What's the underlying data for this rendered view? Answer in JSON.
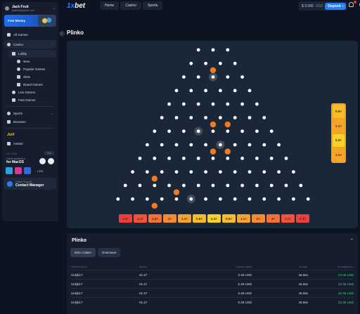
{
  "header": {
    "logo_prefix": "1x",
    "logo_suffix": "bet",
    "nav": [
      "Home",
      "Casino",
      "Sports"
    ],
    "balance": "$ 3.000",
    "currency": "USD",
    "deposit_label": "Deposit"
  },
  "sidebar": {
    "profile_name": "Jack Fruit",
    "profile_email": "jackfruit@gmail.com",
    "promo_label": "Free Money",
    "items": {
      "all_games": "All Games",
      "casino": "Casino",
      "lobby": "Lobby",
      "new": "New",
      "popular": "Popular Games",
      "slots": "Slots",
      "board": "Board Games",
      "live": "Live Games",
      "fast": "Fast Games",
      "sports": "Sports",
      "bonuses": "Bonuses",
      "jetx": "JetX",
      "aviator": "Aviator"
    },
    "vip_label": "Vip Club",
    "vip_button": "Join",
    "install_line1": "Install application",
    "install_line2": "for MacOS",
    "lang": "EN",
    "support_line1": "Online Support",
    "support_line2": "Contact Manager"
  },
  "page_title": "Plinko",
  "game": {
    "multipliers": [
      "2.3×",
      "1.1×",
      "4.4×",
      "2×",
      "1.1×",
      "0.6×",
      "0.3×",
      "0.6×",
      "1.1×",
      "2×",
      "4×",
      "1.1×",
      "2.3×"
    ],
    "multiplier_colors": [
      "#f23b3b",
      "#f4513a",
      "#f56f37",
      "#f58a33",
      "#f5a32f",
      "#f5bc2b",
      "#f5d327",
      "#f5bc2b",
      "#f5a32f",
      "#f58a33",
      "#f56f37",
      "#f4513a",
      "#f23b3b"
    ],
    "side_multipliers": [
      "0.6×",
      "1.1×",
      "0.3×",
      "1.1×"
    ],
    "side_colors": [
      "#f5bc2b",
      "#f5a32f",
      "#f5d327",
      "#f5a32f"
    ],
    "rows": 12,
    "balls": [
      [
        1,
        1
      ],
      [
        5,
        3
      ],
      [
        5,
        4
      ],
      [
        7,
        4
      ],
      [
        7,
        5
      ],
      [
        9,
        1
      ],
      [
        10,
        3
      ],
      [
        11,
        2
      ],
      [
        14,
        2
      ]
    ],
    "glow_pegs": [
      [
        2,
        2
      ],
      [
        6,
        3
      ],
      [
        7,
        5
      ],
      [
        11,
        5
      ],
      [
        12,
        4
      ],
      [
        14,
        1
      ]
    ]
  },
  "history": {
    "title": "Plinko",
    "tabs": [
      "Мои ставки",
      "Описание"
    ],
    "columns": [
      "Пользователь",
      "Время",
      "Сумма ставки",
      "Коэфф.",
      "Коэффициент"
    ],
    "rows": [
      [
        "nickjb17",
        "01:47",
        "0.48 USD",
        "46.58x",
        "22.36 USD"
      ],
      [
        "nickjb17",
        "01:47",
        "0.48 USD",
        "46.58x",
        "22.36 USD"
      ],
      [
        "nickjb17",
        "01:47",
        "0.48 USD",
        "46.58x",
        "22.36 USD"
      ],
      [
        "nickjb17",
        "01:47",
        "0.48 USD",
        "46.58x",
        "22.36 USD"
      ]
    ]
  }
}
